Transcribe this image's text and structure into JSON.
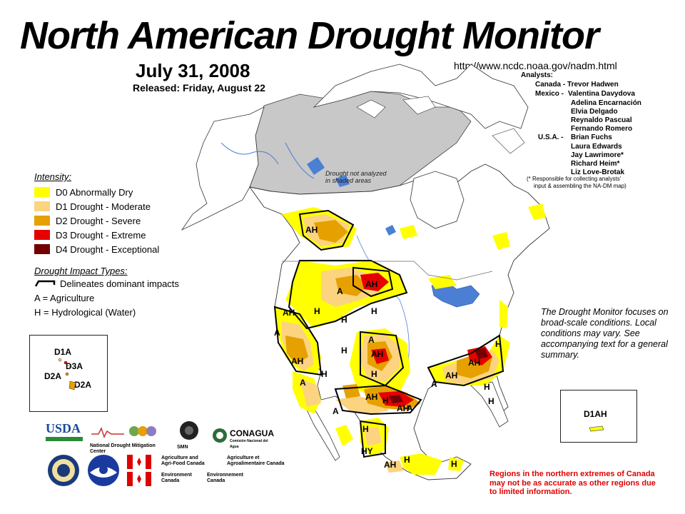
{
  "header": {
    "title": "North American Drought Monitor",
    "date": "July 31, 2008",
    "released": "Released:  Friday, August 22",
    "url": "http://www.ncdc.noaa.gov/nadm.html"
  },
  "analysts": {
    "heading": "Analysts:",
    "canada": "Canada - Trevor Hadwen",
    "mexico_label": "Mexico -",
    "mexico": [
      "Valentina Davydova",
      "Adelina Encarnación",
      "Elvia Delgado",
      "Reynaldo Pascual",
      "Fernando Romero"
    ],
    "usa_label": "U.S.A. -",
    "usa": [
      "Brian Fuchs",
      "Laura Edwards",
      "Jay Lawrimore*",
      "Richard Heim*",
      "Liz Love-Brotak"
    ],
    "footnote_1": "(* Responsible for collecting analysts'",
    "footnote_2": "input & assembling the NA-DM map)"
  },
  "legend": {
    "intensity_title": "Intensity:",
    "items": [
      {
        "label": "D0 Abnormally Dry",
        "color": "#ffff00"
      },
      {
        "label": "D1 Drought - Moderate",
        "color": "#fcd37f"
      },
      {
        "label": "D2 Drought - Severe",
        "color": "#e6a000"
      },
      {
        "label": "D3 Drought - Extreme",
        "color": "#e60000"
      },
      {
        "label": "D4 Drought - Exceptional",
        "color": "#730000"
      }
    ],
    "impact_title": "Drought Impact Types:",
    "impact_line": "Delineates dominant impacts",
    "impact_a": "A = Agriculture",
    "impact_h": "H = Hydrological (Water)"
  },
  "map": {
    "shaded_note_1": "Drought not analyzed",
    "shaded_note_2": "in shaded areas",
    "shaded_color": "#c8c8c8",
    "land_color": "#ffffff",
    "water_color": "#4a7fd4"
  },
  "insets": {
    "hawaii": [
      "D1A",
      "D3A",
      "D2A",
      "D2A"
    ],
    "puerto_rico": "D1AH"
  },
  "notes": {
    "drought_monitor": "The Drought Monitor focuses on broad-scale conditions.  Local conditions may vary.  See accompanying text for a general summary.",
    "regions": "Regions in the northern extremes of Canada may not be as accurate as other regions due to limited information."
  },
  "logos": {
    "usda": "USDA",
    "ndmc": "National Drought Mitigation Center",
    "conagua": "CONAGUA",
    "conagua_sub": "Comisión Nacional del Agua",
    "smn": "SMN",
    "agri_en_1": "Agriculture and",
    "agri_en_2": "Agri-Food Canada",
    "agri_fr_1": "Agriculture et",
    "agri_fr_2": "Agroalimentaire Canada",
    "env_en_1": "Environment",
    "env_en_2": "Canada",
    "env_fr_1": "Environnement",
    "env_fr_2": "Canada"
  }
}
